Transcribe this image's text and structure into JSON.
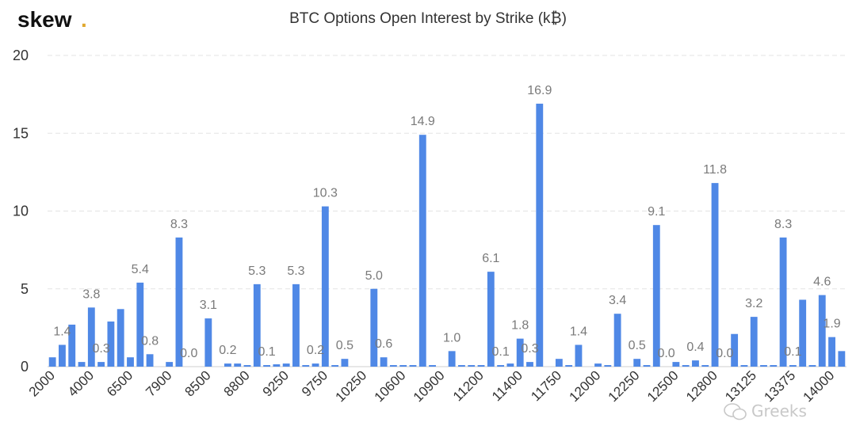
{
  "logo": {
    "text": "skew",
    "dot": "."
  },
  "watermark": {
    "icon": "wechat-icon",
    "text": "Greeks"
  },
  "colors": {
    "bar": "#4f88e6",
    "logo_dot": "#e0a82e"
  },
  "chart_data": {
    "type": "bar",
    "title": "BTC Options Open Interest by Strike (k₿)",
    "xlabel": "",
    "ylabel": "",
    "ylim": [
      0,
      20
    ],
    "yticks": [
      0,
      5,
      10,
      15,
      20
    ],
    "grid": true,
    "legend": "none",
    "bar_count": 82,
    "values": [
      0.6,
      1.4,
      2.7,
      0.3,
      3.8,
      0.3,
      2.9,
      3.7,
      0.6,
      5.4,
      0.8,
      0.0,
      0.3,
      8.3,
      0.0,
      0.0,
      3.1,
      0.0,
      0.2,
      0.2,
      0.1,
      5.3,
      0.1,
      0.15,
      0.2,
      5.3,
      0.1,
      0.2,
      10.3,
      0.1,
      0.5,
      0.0,
      0.0,
      5.0,
      0.6,
      0.1,
      0.1,
      0.1,
      14.9,
      0.1,
      0.0,
      1.0,
      0.1,
      0.1,
      0.1,
      6.1,
      0.1,
      0.2,
      1.8,
      0.3,
      16.9,
      0.0,
      0.5,
      0.1,
      1.4,
      0.0,
      0.2,
      0.1,
      3.4,
      0.0,
      0.5,
      0.1,
      9.1,
      0.0,
      0.3,
      0.1,
      0.4,
      0.1,
      11.8,
      0.0,
      2.1,
      0.1,
      3.2,
      0.1,
      0.1,
      8.3,
      0.1,
      4.3,
      0.1,
      4.6,
      1.9,
      1.0
    ],
    "value_labels": [
      {
        "index": 1,
        "text": "1.4"
      },
      {
        "index": 4,
        "text": "3.8"
      },
      {
        "index": 5,
        "text": "0.3"
      },
      {
        "index": 9,
        "text": "5.4"
      },
      {
        "index": 10,
        "text": "0.8"
      },
      {
        "index": 13,
        "text": "8.3"
      },
      {
        "index": 14,
        "text": "0.0"
      },
      {
        "index": 16,
        "text": "3.1"
      },
      {
        "index": 18,
        "text": "0.2"
      },
      {
        "index": 21,
        "text": "5.3"
      },
      {
        "index": 22,
        "text": "0.1"
      },
      {
        "index": 25,
        "text": "5.3"
      },
      {
        "index": 27,
        "text": "0.2"
      },
      {
        "index": 28,
        "text": "10.3"
      },
      {
        "index": 30,
        "text": "0.5"
      },
      {
        "index": 33,
        "text": "5.0"
      },
      {
        "index": 34,
        "text": "0.6"
      },
      {
        "index": 38,
        "text": "14.9"
      },
      {
        "index": 41,
        "text": "1.0"
      },
      {
        "index": 45,
        "text": "6.1"
      },
      {
        "index": 46,
        "text": "0.1"
      },
      {
        "index": 48,
        "text": "1.8"
      },
      {
        "index": 49,
        "text": "0.3"
      },
      {
        "index": 50,
        "text": "16.9"
      },
      {
        "index": 54,
        "text": "1.4"
      },
      {
        "index": 58,
        "text": "3.4"
      },
      {
        "index": 60,
        "text": "0.5"
      },
      {
        "index": 62,
        "text": "9.1"
      },
      {
        "index": 63,
        "text": "0.0"
      },
      {
        "index": 66,
        "text": "0.4"
      },
      {
        "index": 68,
        "text": "11.8"
      },
      {
        "index": 69,
        "text": "0.0"
      },
      {
        "index": 72,
        "text": "3.2"
      },
      {
        "index": 75,
        "text": "8.3"
      },
      {
        "index": 76,
        "text": "0.1"
      },
      {
        "index": 79,
        "text": "4.6"
      },
      {
        "index": 80,
        "text": "1.9"
      }
    ],
    "x_tick_labels": [
      {
        "index": 0,
        "text": "2000"
      },
      {
        "index": 4,
        "text": "4000"
      },
      {
        "index": 8,
        "text": "6500"
      },
      {
        "index": 12,
        "text": "7900"
      },
      {
        "index": 16,
        "text": "8500"
      },
      {
        "index": 20,
        "text": "8800"
      },
      {
        "index": 24,
        "text": "9250"
      },
      {
        "index": 28,
        "text": "9750"
      },
      {
        "index": 32,
        "text": "10250"
      },
      {
        "index": 36,
        "text": "10600"
      },
      {
        "index": 40,
        "text": "10900"
      },
      {
        "index": 44,
        "text": "11200"
      },
      {
        "index": 48,
        "text": "11400"
      },
      {
        "index": 52,
        "text": "11750"
      },
      {
        "index": 56,
        "text": "12000"
      },
      {
        "index": 60,
        "text": "12250"
      },
      {
        "index": 64,
        "text": "12500"
      },
      {
        "index": 68,
        "text": "12800"
      },
      {
        "index": 72,
        "text": "13125"
      },
      {
        "index": 76,
        "text": "13375"
      },
      {
        "index": 80,
        "text": "14000"
      }
    ]
  }
}
